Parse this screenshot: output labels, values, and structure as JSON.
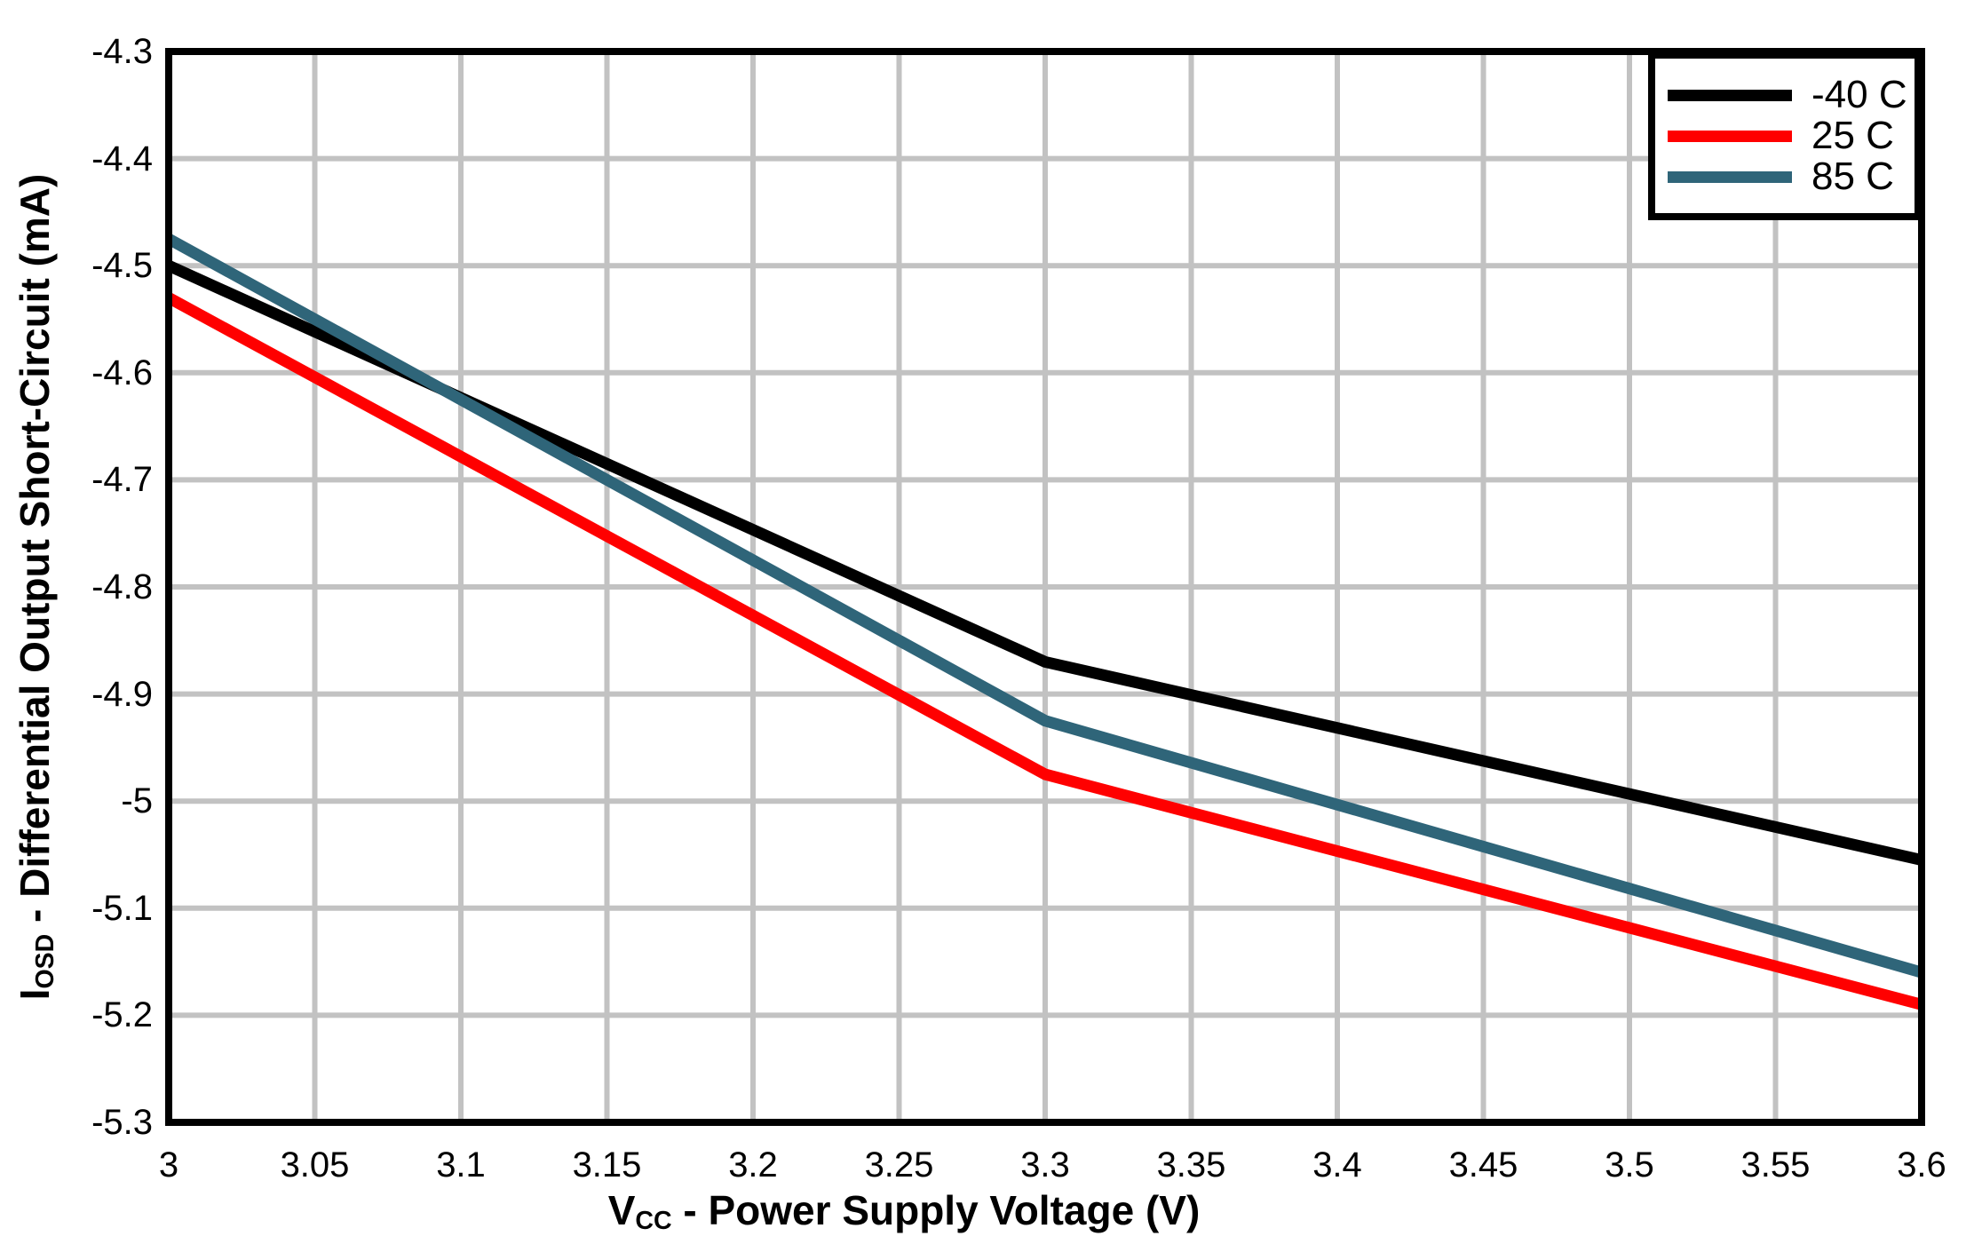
{
  "chart_data": {
    "type": "line",
    "title": "",
    "xlabel": {
      "prefix": "V",
      "sub": "CC",
      "rest": " - Power Supply Voltage (V)"
    },
    "ylabel": {
      "prefix": "I",
      "sub": "OSD",
      "rest": " - Differential Output Short-Circuit (mA)"
    },
    "x_axis": {
      "min": 3.0,
      "max": 3.6,
      "ticks": [
        {
          "v": 3.0,
          "label": "3"
        },
        {
          "v": 3.05,
          "label": "3.05"
        },
        {
          "v": 3.1,
          "label": "3.1"
        },
        {
          "v": 3.15,
          "label": "3.15"
        },
        {
          "v": 3.2,
          "label": "3.2"
        },
        {
          "v": 3.25,
          "label": "3.25"
        },
        {
          "v": 3.3,
          "label": "3.3"
        },
        {
          "v": 3.35,
          "label": "3.35"
        },
        {
          "v": 3.4,
          "label": "3.4"
        },
        {
          "v": 3.45,
          "label": "3.45"
        },
        {
          "v": 3.5,
          "label": "3.5"
        },
        {
          "v": 3.55,
          "label": "3.55"
        },
        {
          "v": 3.6,
          "label": "3.6"
        }
      ]
    },
    "y_axis": {
      "min": -5.3,
      "max": -4.3,
      "ticks": [
        {
          "v": -4.3,
          "label": "-4.3"
        },
        {
          "v": -4.4,
          "label": "-4.4"
        },
        {
          "v": -4.5,
          "label": "-4.5"
        },
        {
          "v": -4.6,
          "label": "-4.6"
        },
        {
          "v": -4.7,
          "label": "-4.7"
        },
        {
          "v": -4.8,
          "label": "-4.8"
        },
        {
          "v": -4.9,
          "label": "-4.9"
        },
        {
          "v": -5.0,
          "label": "-5"
        },
        {
          "v": -5.1,
          "label": "-5.1"
        },
        {
          "v": -5.2,
          "label": "-5.2"
        },
        {
          "v": -5.3,
          "label": "-5.3"
        }
      ]
    },
    "grid": true,
    "legend_position": "top-right",
    "colors": {
      "grid": "#C2C2C2",
      "axis": "#000000",
      "background": "#FFFFFF"
    },
    "series": [
      {
        "label": "-40 C",
        "color": "#000000",
        "points": [
          [
            3.0,
            -4.5
          ],
          [
            3.3,
            -4.87
          ],
          [
            3.6,
            -5.055
          ]
        ]
      },
      {
        "label": "25 C",
        "color": "#FF0000",
        "points": [
          [
            3.0,
            -4.53
          ],
          [
            3.3,
            -4.975
          ],
          [
            3.6,
            -5.19
          ]
        ]
      },
      {
        "label": "85 C",
        "color": "#2F6579",
        "points": [
          [
            3.0,
            -4.475
          ],
          [
            3.3,
            -4.925
          ],
          [
            3.6,
            -5.16
          ]
        ]
      }
    ]
  }
}
